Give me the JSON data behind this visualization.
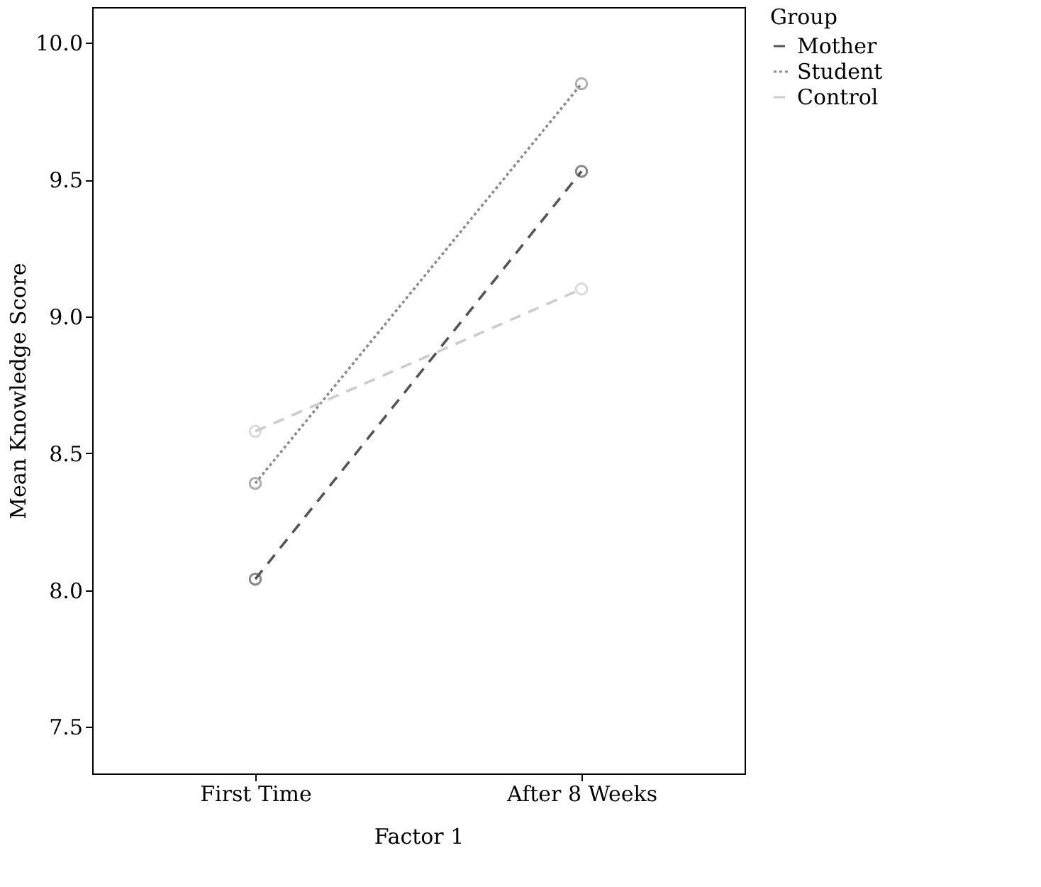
{
  "chart_data": {
    "type": "line",
    "xlabel": "Factor 1",
    "ylabel": "Mean Knowledge Score",
    "legend_title": "Group",
    "categories": [
      "First Time",
      "After 8 Weeks"
    ],
    "series": [
      {
        "name": "Mother",
        "color": "#555555",
        "line_style": "dashed",
        "values": [
          8.04,
          9.53
        ]
      },
      {
        "name": "Student",
        "color": "#8c8c8c",
        "line_style": "dotted",
        "values": [
          8.39,
          9.85
        ]
      },
      {
        "name": "Control",
        "color": "#cccccc",
        "line_style": "dashed",
        "values": [
          8.58,
          9.1
        ]
      }
    ],
    "ylim": [
      7.33,
      10.13
    ],
    "yticks": [
      7.5,
      {
        "value": 8,
        "label": "8.0"
      },
      8.5,
      {
        "value": 9,
        "label": "9.0"
      },
      9.5,
      {
        "value": 10,
        "label": "10.0"
      }
    ],
    "grid": false,
    "legend": "top right",
    "marker": "circle"
  }
}
